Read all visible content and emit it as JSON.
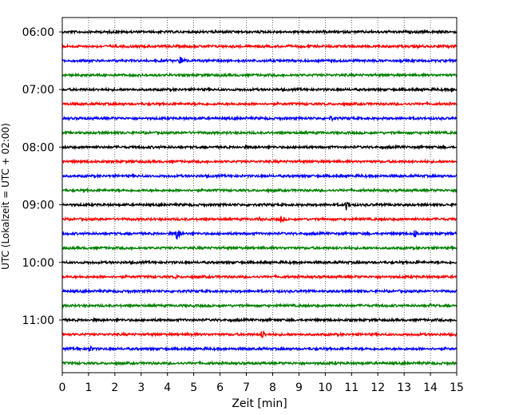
{
  "chart_data": {
    "type": "line",
    "title": "",
    "xlabel": "Zeit  [min]",
    "ylabel": "UTC (Lokalzeit = UTC + 02:00)",
    "xlim": [
      0,
      15
    ],
    "x_ticks": [
      "0",
      "1",
      "2",
      "3",
      "4",
      "5",
      "6",
      "7",
      "8",
      "9",
      "10",
      "11",
      "12",
      "13",
      "14",
      "15"
    ],
    "y_tick_labels": [
      "06:00",
      "07:00",
      "08:00",
      "09:00",
      "10:00",
      "11:00"
    ],
    "grid": "vertical dotted",
    "trace_colors": [
      "#000000",
      "#ff0000",
      "#0000ff",
      "#008000"
    ],
    "traces": [
      {
        "start": "06:00",
        "color": "#000000",
        "events": []
      },
      {
        "start": "06:15",
        "color": "#ff0000",
        "events": []
      },
      {
        "start": "06:30",
        "color": "#0000ff",
        "events": [
          {
            "t": 4.5,
            "amp": 8
          }
        ]
      },
      {
        "start": "06:45",
        "color": "#008000",
        "events": []
      },
      {
        "start": "07:00",
        "color": "#000000",
        "events": [
          {
            "t": 14.8,
            "amp": 4
          }
        ]
      },
      {
        "start": "07:15",
        "color": "#ff0000",
        "events": []
      },
      {
        "start": "07:30",
        "color": "#0000ff",
        "events": [
          {
            "t": 10.2,
            "amp": 4
          }
        ]
      },
      {
        "start": "07:45",
        "color": "#008000",
        "events": []
      },
      {
        "start": "08:00",
        "color": "#000000",
        "events": [
          {
            "t": 9.0,
            "amp": 3
          }
        ]
      },
      {
        "start": "08:15",
        "color": "#ff0000",
        "events": []
      },
      {
        "start": "08:30",
        "color": "#0000ff",
        "events": []
      },
      {
        "start": "08:45",
        "color": "#008000",
        "events": []
      },
      {
        "start": "09:00",
        "color": "#000000",
        "events": [
          {
            "t": 10.8,
            "amp": 7
          },
          {
            "t": 12.6,
            "amp": 3
          }
        ]
      },
      {
        "start": "09:15",
        "color": "#ff0000",
        "events": [
          {
            "t": 8.3,
            "amp": 5
          },
          {
            "t": 7.5,
            "amp": 3
          }
        ]
      },
      {
        "start": "09:30",
        "color": "#0000ff",
        "events": [
          {
            "t": 4.35,
            "amp": 10
          },
          {
            "t": 13.4,
            "amp": 6
          }
        ]
      },
      {
        "start": "09:45",
        "color": "#008000",
        "events": []
      },
      {
        "start": "10:00",
        "color": "#000000",
        "events": [
          {
            "t": 13.5,
            "amp": 3
          }
        ]
      },
      {
        "start": "10:15",
        "color": "#ff0000",
        "events": [
          {
            "t": 4.3,
            "amp": 3
          }
        ]
      },
      {
        "start": "10:30",
        "color": "#0000ff",
        "events": []
      },
      {
        "start": "10:45",
        "color": "#008000",
        "events": [
          {
            "t": 14.0,
            "amp": 3
          }
        ]
      },
      {
        "start": "11:00",
        "color": "#000000",
        "events": []
      },
      {
        "start": "11:15",
        "color": "#ff0000",
        "events": [
          {
            "t": 7.6,
            "amp": 7
          },
          {
            "t": 4.9,
            "amp": 3
          }
        ]
      },
      {
        "start": "11:30",
        "color": "#0000ff",
        "events": [
          {
            "t": 1.0,
            "amp": 6
          },
          {
            "t": 0.6,
            "amp": 3
          }
        ]
      },
      {
        "start": "11:45",
        "color": "#008000",
        "events": []
      }
    ]
  }
}
